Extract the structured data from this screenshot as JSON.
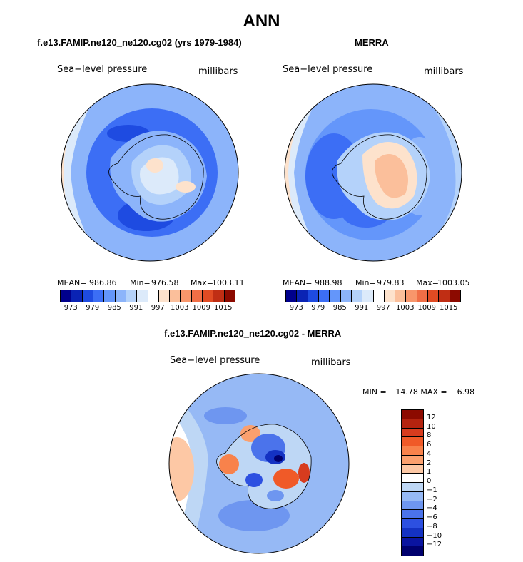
{
  "title": "ANN",
  "colors": {
    "abs_scale": [
      "#00008c",
      "#0a23b4",
      "#1e4be1",
      "#3c6ef5",
      "#6496fa",
      "#8cb4fa",
      "#b4d2fa",
      "#dceafa",
      "#ffffff",
      "#fde2cc",
      "#fbbf9b",
      "#f8966b",
      "#f06e46",
      "#e14b23",
      "#c02e14",
      "#8c0a00"
    ],
    "diff_scale": [
      "#8c0a00",
      "#b4230f",
      "#d73c1e",
      "#f05a28",
      "#f8824b",
      "#fba06e",
      "#fdc8a5",
      "#ffffff",
      "#bed7f5",
      "#96b9f5",
      "#6e96f0",
      "#4b73eb",
      "#2d50e1",
      "#1432c3",
      "#0a14a0",
      "#00006e"
    ]
  },
  "panels": [
    {
      "title": "f.e13.FAMIP.ne120_ne120.cg02 (yrs 1979-1984)",
      "left_label": "Sea−level pressure",
      "right_label": "millibars",
      "mean_label": "MEAN=",
      "mean": "986.86",
      "min_label": "Min=",
      "min": "976.58",
      "max_label": "Max=",
      "max": "1003.11",
      "ticks": [
        "973",
        "979",
        "985",
        "991",
        "997",
        "1003",
        "1009",
        "1015"
      ]
    },
    {
      "title": "MERRA",
      "left_label": "Sea−level pressure",
      "right_label": "millibars",
      "mean_label": "MEAN=",
      "mean": "988.98",
      "min_label": "Min=",
      "min": "979.83",
      "max_label": "Max=",
      "max": "1003.05",
      "ticks": [
        "973",
        "979",
        "985",
        "991",
        "997",
        "1003",
        "1009",
        "1015"
      ]
    }
  ],
  "diff": {
    "title": "f.e13.FAMIP.ne120_ne120.cg02 - MERRA",
    "left_label": "Sea−level pressure",
    "right_label": "millibars",
    "minmax_text": "MIN = −14.78 MAX =    6.98",
    "ticks": [
      "12",
      "10",
      "8",
      "6",
      "4",
      "2",
      "1",
      "0",
      "−1",
      "−2",
      "−4",
      "−6",
      "−8",
      "−10",
      "−12"
    ]
  },
  "chart_data": [
    {
      "type": "heatmap",
      "title": "f.e13.FAMIP.ne120_ne120.cg02 (yrs 1979-1984)",
      "variable": "Sea-level pressure",
      "units": "millibars",
      "mean": 986.86,
      "min": 976.58,
      "max": 1003.11,
      "levels": [
        973,
        976,
        979,
        982,
        985,
        988,
        991,
        994,
        997,
        1000,
        1003,
        1006,
        1009,
        1012,
        1015
      ]
    },
    {
      "type": "heatmap",
      "title": "MERRA",
      "variable": "Sea-level pressure",
      "units": "millibars",
      "mean": 988.98,
      "min": 979.83,
      "max": 1003.05,
      "levels": [
        973,
        976,
        979,
        982,
        985,
        988,
        991,
        994,
        997,
        1000,
        1003,
        1006,
        1009,
        1012,
        1015
      ]
    },
    {
      "type": "heatmap",
      "title": "f.e13.FAMIP.ne120_ne120.cg02 - MERRA",
      "variable": "Sea-level pressure",
      "units": "millibars",
      "min": -14.78,
      "max": 6.98,
      "levels": [
        -12,
        -10,
        -8,
        -6,
        -4,
        -2,
        -1,
        0,
        1,
        2,
        4,
        6,
        8,
        10,
        12
      ]
    }
  ]
}
